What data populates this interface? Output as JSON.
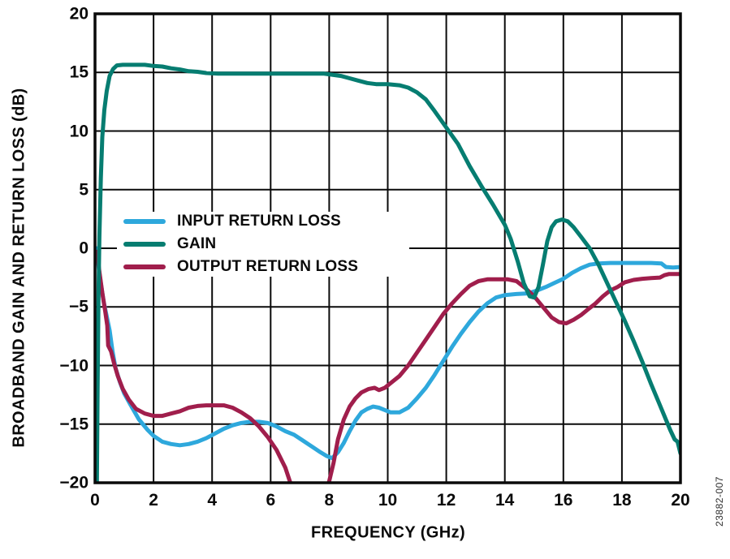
{
  "figure": {
    "watermark": "23882-007"
  },
  "chart_data": {
    "type": "line",
    "title": "",
    "xlabel": "FREQUENCY (GHz)",
    "ylabel": "BROADBAND GAIN AND RETURN LOSS (dB)",
    "xlim": [
      0,
      20
    ],
    "ylim": [
      -20,
      20
    ],
    "x_ticks": [
      0,
      2,
      4,
      6,
      8,
      10,
      12,
      14,
      16,
      18,
      20
    ],
    "y_ticks": [
      20,
      15,
      10,
      5,
      0,
      -5,
      -10,
      -15,
      -20
    ],
    "x_tick_labels": [
      "0",
      "2",
      "4",
      "6",
      "8",
      "10",
      "12",
      "14",
      "16",
      "18",
      "20"
    ],
    "y_tick_labels": [
      "20",
      "15",
      "10",
      "5",
      "0",
      "−5",
      "−10",
      "−15",
      "−20"
    ],
    "grid": true,
    "grid_color": "#0a0a0a",
    "legend_position": "inside-middle-left",
    "series": [
      {
        "name": "INPUT RETURN LOSS",
        "color": "#2EA8DC",
        "points": [
          [
            0.05,
            0
          ],
          [
            0.1,
            -1.2
          ],
          [
            0.2,
            -3
          ],
          [
            0.3,
            -4.6
          ],
          [
            0.4,
            -5.8
          ],
          [
            0.5,
            -7
          ],
          [
            0.6,
            -8.8
          ],
          [
            0.7,
            -10.2
          ],
          [
            0.85,
            -11.4
          ],
          [
            1,
            -12.4
          ],
          [
            1.2,
            -13.3
          ],
          [
            1.5,
            -14.6
          ],
          [
            1.8,
            -15.5
          ],
          [
            2,
            -16
          ],
          [
            2.3,
            -16.5
          ],
          [
            2.6,
            -16.7
          ],
          [
            2.9,
            -16.8
          ],
          [
            3.2,
            -16.7
          ],
          [
            3.5,
            -16.5
          ],
          [
            3.8,
            -16.2
          ],
          [
            4.1,
            -15.8
          ],
          [
            4.4,
            -15.4
          ],
          [
            4.7,
            -15.1
          ],
          [
            5,
            -14.9
          ],
          [
            5.3,
            -14.8
          ],
          [
            5.6,
            -14.8
          ],
          [
            5.9,
            -14.9
          ],
          [
            6.2,
            -15.2
          ],
          [
            6.5,
            -15.6
          ],
          [
            6.8,
            -15.9
          ],
          [
            7.1,
            -16.4
          ],
          [
            7.4,
            -16.9
          ],
          [
            7.7,
            -17.4
          ],
          [
            7.9,
            -17.7
          ],
          [
            8.1,
            -17.9
          ],
          [
            8.3,
            -17.4
          ],
          [
            8.5,
            -16.6
          ],
          [
            8.7,
            -15.6
          ],
          [
            8.9,
            -14.7
          ],
          [
            9.1,
            -14
          ],
          [
            9.3,
            -13.7
          ],
          [
            9.5,
            -13.5
          ],
          [
            9.7,
            -13.6
          ],
          [
            9.9,
            -13.8
          ],
          [
            10.1,
            -14
          ],
          [
            10.4,
            -14
          ],
          [
            10.7,
            -13.6
          ],
          [
            11,
            -12.8
          ],
          [
            11.3,
            -11.9
          ],
          [
            11.6,
            -10.8
          ],
          [
            11.9,
            -9.6
          ],
          [
            12.2,
            -8.4
          ],
          [
            12.5,
            -7.3
          ],
          [
            12.8,
            -6.3
          ],
          [
            13.1,
            -5.4
          ],
          [
            13.4,
            -4.7
          ],
          [
            13.7,
            -4.2
          ],
          [
            14,
            -4
          ],
          [
            14.4,
            -3.9
          ],
          [
            14.8,
            -3.85
          ],
          [
            15.1,
            -3.6
          ],
          [
            15.4,
            -3.3
          ],
          [
            15.7,
            -2.95
          ],
          [
            16,
            -2.6
          ],
          [
            16.3,
            -2.1
          ],
          [
            16.6,
            -1.7
          ],
          [
            16.9,
            -1.4
          ],
          [
            17.2,
            -1.3
          ],
          [
            17.6,
            -1.25
          ],
          [
            18,
            -1.25
          ],
          [
            18.5,
            -1.25
          ],
          [
            19,
            -1.25
          ],
          [
            19.35,
            -1.3
          ],
          [
            19.5,
            -1.6
          ],
          [
            19.75,
            -1.65
          ],
          [
            20,
            -1.6
          ]
        ]
      },
      {
        "name": "GAIN",
        "color": "#067D71",
        "points": [
          [
            0.06,
            -21
          ],
          [
            0.09,
            -12
          ],
          [
            0.12,
            -4
          ],
          [
            0.15,
            1
          ],
          [
            0.2,
            6
          ],
          [
            0.25,
            9.5
          ],
          [
            0.32,
            11.8
          ],
          [
            0.4,
            13.4
          ],
          [
            0.5,
            14.7
          ],
          [
            0.62,
            15.3
          ],
          [
            0.75,
            15.6
          ],
          [
            0.95,
            15.65
          ],
          [
            1.3,
            15.65
          ],
          [
            1.7,
            15.65
          ],
          [
            2,
            15.55
          ],
          [
            2.3,
            15.5
          ],
          [
            2.6,
            15.35
          ],
          [
            2.9,
            15.25
          ],
          [
            3.2,
            15.1
          ],
          [
            3.5,
            15.05
          ],
          [
            3.8,
            14.95
          ],
          [
            4.2,
            14.9
          ],
          [
            4.8,
            14.9
          ],
          [
            5.4,
            14.9
          ],
          [
            6,
            14.9
          ],
          [
            6.6,
            14.9
          ],
          [
            7.2,
            14.9
          ],
          [
            7.8,
            14.9
          ],
          [
            8.1,
            14.8
          ],
          [
            8.4,
            14.7
          ],
          [
            8.7,
            14.5
          ],
          [
            9,
            14.3
          ],
          [
            9.3,
            14.1
          ],
          [
            9.6,
            14
          ],
          [
            10,
            14
          ],
          [
            10.4,
            13.9
          ],
          [
            10.7,
            13.7
          ],
          [
            11,
            13.3
          ],
          [
            11.3,
            12.7
          ],
          [
            11.6,
            11.7
          ],
          [
            12,
            10.3
          ],
          [
            12.4,
            8.9
          ],
          [
            12.8,
            7
          ],
          [
            13.2,
            5.3
          ],
          [
            13.6,
            3.7
          ],
          [
            14,
            2
          ],
          [
            14.2,
            0.8
          ],
          [
            14.45,
            -1.2
          ],
          [
            14.65,
            -3
          ],
          [
            14.85,
            -4.1
          ],
          [
            15,
            -4.2
          ],
          [
            15.15,
            -3.3
          ],
          [
            15.3,
            -1.4
          ],
          [
            15.45,
            0.6
          ],
          [
            15.6,
            1.8
          ],
          [
            15.75,
            2.3
          ],
          [
            15.95,
            2.45
          ],
          [
            16.15,
            2.3
          ],
          [
            16.35,
            1.8
          ],
          [
            16.6,
            1
          ],
          [
            16.9,
            0
          ],
          [
            17.2,
            -1.4
          ],
          [
            17.5,
            -3
          ],
          [
            17.8,
            -4.6
          ],
          [
            18.1,
            -6.2
          ],
          [
            18.4,
            -7.9
          ],
          [
            18.7,
            -9.7
          ],
          [
            19,
            -11.6
          ],
          [
            19.25,
            -13.1
          ],
          [
            19.5,
            -14.6
          ],
          [
            19.65,
            -15.5
          ],
          [
            19.8,
            -16.3
          ],
          [
            19.9,
            -16.5
          ],
          [
            20,
            -17.5
          ]
        ]
      },
      {
        "name": "OUTPUT RETURN LOSS",
        "color": "#A01E4C",
        "points": [
          [
            0.07,
            -0.3
          ],
          [
            0.15,
            -2
          ],
          [
            0.25,
            -3.8
          ],
          [
            0.35,
            -5.4
          ],
          [
            0.42,
            -6.6
          ],
          [
            0.45,
            -8.3
          ],
          [
            0.55,
            -8.8
          ],
          [
            0.65,
            -9.8
          ],
          [
            0.78,
            -10.9
          ],
          [
            0.95,
            -12
          ],
          [
            1.15,
            -12.9
          ],
          [
            1.4,
            -13.7
          ],
          [
            1.7,
            -14.1
          ],
          [
            2,
            -14.3
          ],
          [
            2.3,
            -14.3
          ],
          [
            2.6,
            -14.1
          ],
          [
            2.9,
            -13.9
          ],
          [
            3.2,
            -13.6
          ],
          [
            3.5,
            -13.45
          ],
          [
            3.8,
            -13.4
          ],
          [
            4.1,
            -13.4
          ],
          [
            4.4,
            -13.4
          ],
          [
            4.7,
            -13.6
          ],
          [
            5,
            -14
          ],
          [
            5.3,
            -14.5
          ],
          [
            5.6,
            -15.2
          ],
          [
            5.9,
            -16.1
          ],
          [
            6.2,
            -17.2
          ],
          [
            6.5,
            -18.7
          ],
          [
            6.7,
            -20.2
          ],
          [
            6.9,
            -21.3
          ],
          [
            7.3,
            -22
          ],
          [
            7.7,
            -21.5
          ],
          [
            7.95,
            -20.4
          ],
          [
            8.15,
            -18.3
          ],
          [
            8.3,
            -16.3
          ],
          [
            8.5,
            -14.6
          ],
          [
            8.7,
            -13.5
          ],
          [
            8.9,
            -12.8
          ],
          [
            9.1,
            -12.3
          ],
          [
            9.35,
            -12
          ],
          [
            9.55,
            -11.9
          ],
          [
            9.7,
            -12.1
          ],
          [
            9.9,
            -11.9
          ],
          [
            10.1,
            -11.5
          ],
          [
            10.4,
            -10.9
          ],
          [
            10.7,
            -10
          ],
          [
            11,
            -8.9
          ],
          [
            11.3,
            -7.8
          ],
          [
            11.6,
            -6.7
          ],
          [
            11.9,
            -5.6
          ],
          [
            12.2,
            -4.7
          ],
          [
            12.5,
            -3.9
          ],
          [
            12.8,
            -3.2
          ],
          [
            13.1,
            -2.8
          ],
          [
            13.4,
            -2.65
          ],
          [
            13.8,
            -2.65
          ],
          [
            14.1,
            -2.65
          ],
          [
            14.4,
            -2.8
          ],
          [
            14.7,
            -3.4
          ],
          [
            15,
            -4.1
          ],
          [
            15.3,
            -5
          ],
          [
            15.6,
            -5.9
          ],
          [
            15.85,
            -6.3
          ],
          [
            16.1,
            -6.4
          ],
          [
            16.35,
            -6.1
          ],
          [
            16.6,
            -5.7
          ],
          [
            16.85,
            -5.2
          ],
          [
            17.1,
            -4.7
          ],
          [
            17.35,
            -4.1
          ],
          [
            17.6,
            -3.6
          ],
          [
            17.85,
            -3.3
          ],
          [
            18.1,
            -2.9
          ],
          [
            18.4,
            -2.7
          ],
          [
            18.7,
            -2.6
          ],
          [
            19,
            -2.55
          ],
          [
            19.3,
            -2.5
          ],
          [
            19.45,
            -2.3
          ],
          [
            19.6,
            -2.2
          ],
          [
            20,
            -2.2
          ]
        ]
      }
    ]
  }
}
